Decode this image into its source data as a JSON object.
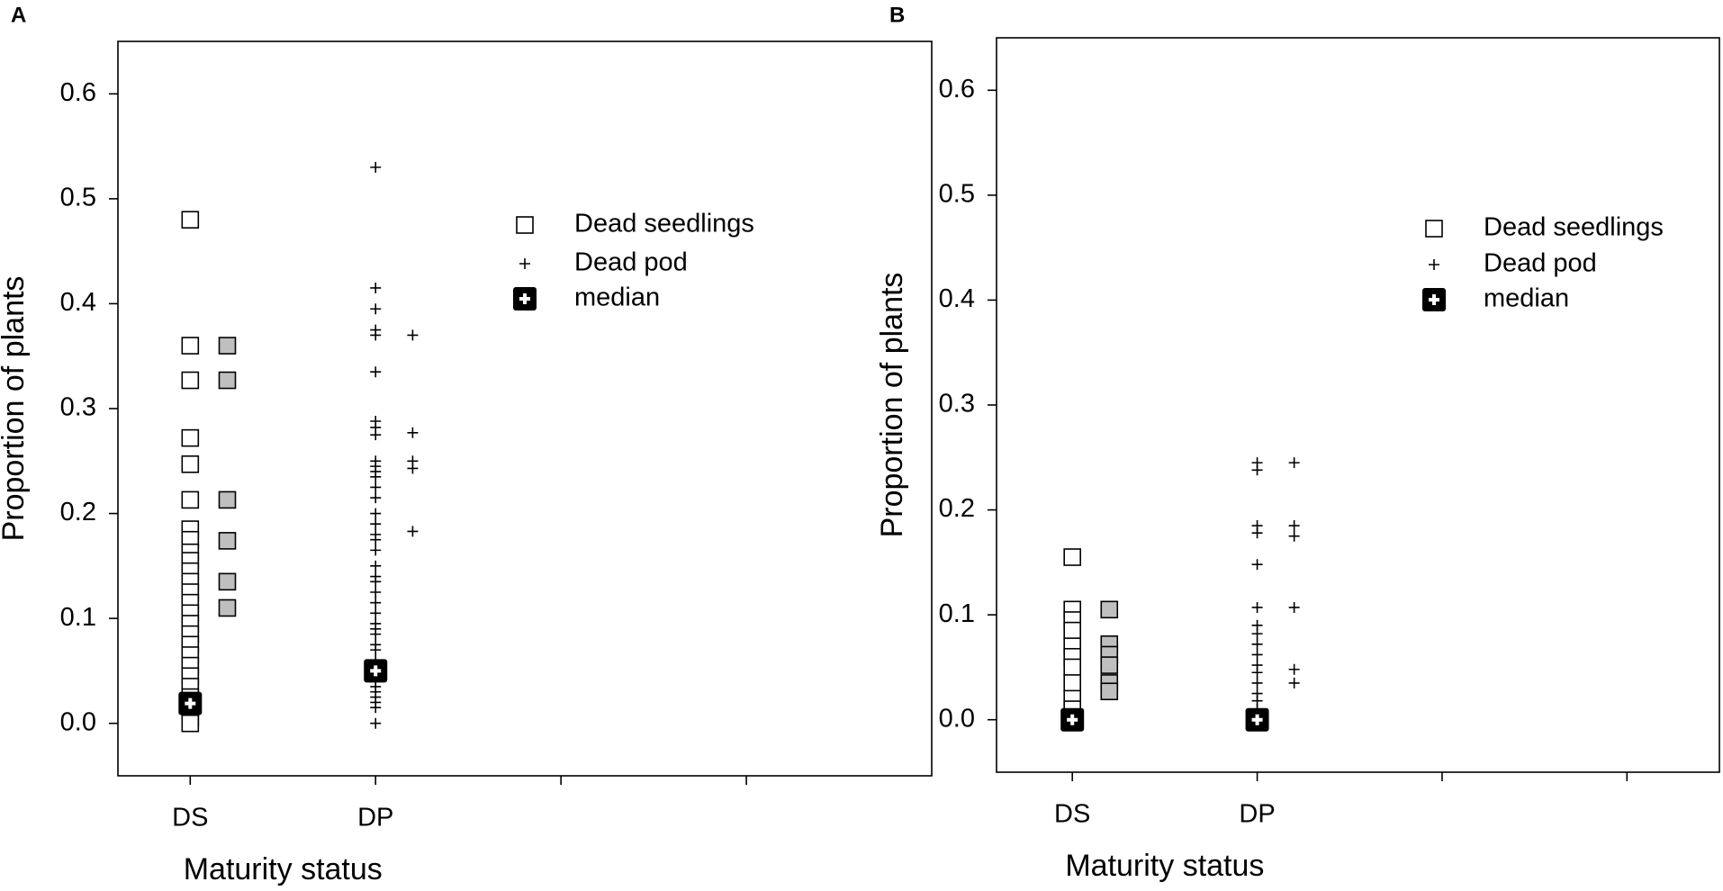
{
  "chart_data": [
    {
      "type": "scatter",
      "label": "A",
      "ylabel": "Proportion of plants",
      "xlabel": "Maturity status",
      "categories": [
        "DS",
        "DP",
        null,
        null
      ],
      "xlim": [
        -0.39,
        4.0
      ],
      "ylim": [
        -0.05,
        0.65
      ],
      "yticks": [
        {
          "value": 0,
          "label": "0.0"
        },
        0.1,
        0.2,
        0.3,
        0.4,
        0.5,
        0.6
      ],
      "legend": "upper right",
      "series": [
        {
          "name": "Dead seedlings",
          "marker": "square",
          "color": "#ffffff",
          "x": [
            0,
            0,
            0,
            0,
            0,
            0,
            0,
            0,
            0,
            0,
            0,
            0,
            0,
            0,
            0,
            0,
            0,
            0,
            0,
            0,
            0,
            0,
            0,
            0,
            0,
            0
          ],
          "values": [
            0.48,
            0.36,
            0.327,
            0.272,
            0.247,
            0.213,
            0.185,
            0.175,
            0.163,
            0.155,
            0.145,
            0.135,
            0.125,
            0.115,
            0.105,
            0.095,
            0.085,
            0.075,
            0.065,
            0.055,
            0.045,
            0.035,
            0.025,
            0.015,
            0.005,
            0.0
          ]
        },
        {
          "marker": "square",
          "color": "#bfbfbf",
          "x": [
            0.2,
            0.2,
            0.2,
            0.2,
            0.2,
            0.2
          ],
          "values": [
            0.36,
            0.327,
            0.213,
            0.174,
            0.135,
            0.11
          ]
        },
        {
          "name": "Dead pod",
          "marker": "plus",
          "color": "#000000",
          "x": [
            1,
            1,
            1,
            1,
            1,
            1,
            1,
            1,
            1,
            1,
            1,
            1,
            1,
            1,
            1,
            1,
            1,
            1,
            1,
            1,
            1,
            1,
            1,
            1,
            1,
            1,
            1,
            1,
            1,
            1,
            1,
            1,
            1,
            1,
            1,
            1,
            1,
            1,
            1,
            1,
            1
          ],
          "values": [
            0.53,
            0.415,
            0.395,
            0.375,
            0.37,
            0.335,
            0.288,
            0.282,
            0.275,
            0.25,
            0.245,
            0.24,
            0.235,
            0.225,
            0.215,
            0.2,
            0.19,
            0.18,
            0.175,
            0.165,
            0.15,
            0.14,
            0.135,
            0.125,
            0.115,
            0.105,
            0.095,
            0.09,
            0.085,
            0.075,
            0.07,
            0.06,
            0.055,
            0.045,
            0.04,
            0.035,
            0.03,
            0.025,
            0.02,
            0.015,
            0.0
          ]
        },
        {
          "marker": "plus",
          "color": "#000000",
          "x": [
            1.2,
            1.2,
            1.2,
            1.2,
            1.2
          ],
          "values": [
            0.37,
            0.277,
            0.25,
            0.243,
            0.183
          ]
        },
        {
          "name": "median",
          "marker": "median",
          "color": "#000000",
          "x": [
            0,
            1
          ],
          "values": [
            0.019,
            0.05
          ]
        }
      ]
    },
    {
      "type": "scatter",
      "label": "B",
      "ylabel": "Proportion of plants",
      "xlabel": "Maturity status",
      "categories": [
        "DS",
        "DP",
        null,
        null
      ],
      "xlim": [
        -0.41,
        3.5
      ],
      "ylim": [
        -0.05,
        0.65
      ],
      "yticks": [
        {
          "value": 0,
          "label": "0.0"
        },
        0.1,
        0.2,
        0.3,
        0.4,
        0.5,
        0.6
      ],
      "legend": "upper right",
      "series": [
        {
          "name": "Dead seedlings",
          "marker": "square",
          "color": "#ffffff",
          "x": [
            0,
            0,
            0,
            0,
            0,
            0,
            0,
            0,
            0,
            0,
            0
          ],
          "values": [
            0.155,
            0.105,
            0.095,
            0.085,
            0.07,
            0.06,
            0.05,
            0.035,
            0.02,
            0.01,
            0.0
          ]
        },
        {
          "marker": "square",
          "color": "#bfbfbf",
          "x": [
            0.2,
            0.2,
            0.2,
            0.2,
            0.2,
            0.2
          ],
          "values": [
            0.105,
            0.072,
            0.062,
            0.052,
            0.035,
            0.027
          ]
        },
        {
          "name": "Dead pod",
          "marker": "plus",
          "color": "#000000",
          "x": [
            1,
            1,
            1,
            1,
            1,
            1,
            1,
            1,
            1,
            1,
            1,
            1,
            1,
            1,
            1,
            1,
            1
          ],
          "values": [
            0.245,
            0.238,
            0.185,
            0.178,
            0.148,
            0.107,
            0.09,
            0.082,
            0.072,
            0.062,
            0.052,
            0.045,
            0.035,
            0.025,
            0.018,
            0.01,
            0.005
          ]
        },
        {
          "marker": "plus",
          "color": "#000000",
          "x": [
            1.2,
            1.2,
            1.2,
            1.2,
            1.2,
            1.2
          ],
          "values": [
            0.245,
            0.185,
            0.175,
            0.107,
            0.048,
            0.035
          ]
        },
        {
          "name": "median",
          "marker": "median",
          "color": "#000000",
          "x": [
            0,
            1
          ],
          "values": [
            0,
            0
          ]
        }
      ]
    }
  ]
}
